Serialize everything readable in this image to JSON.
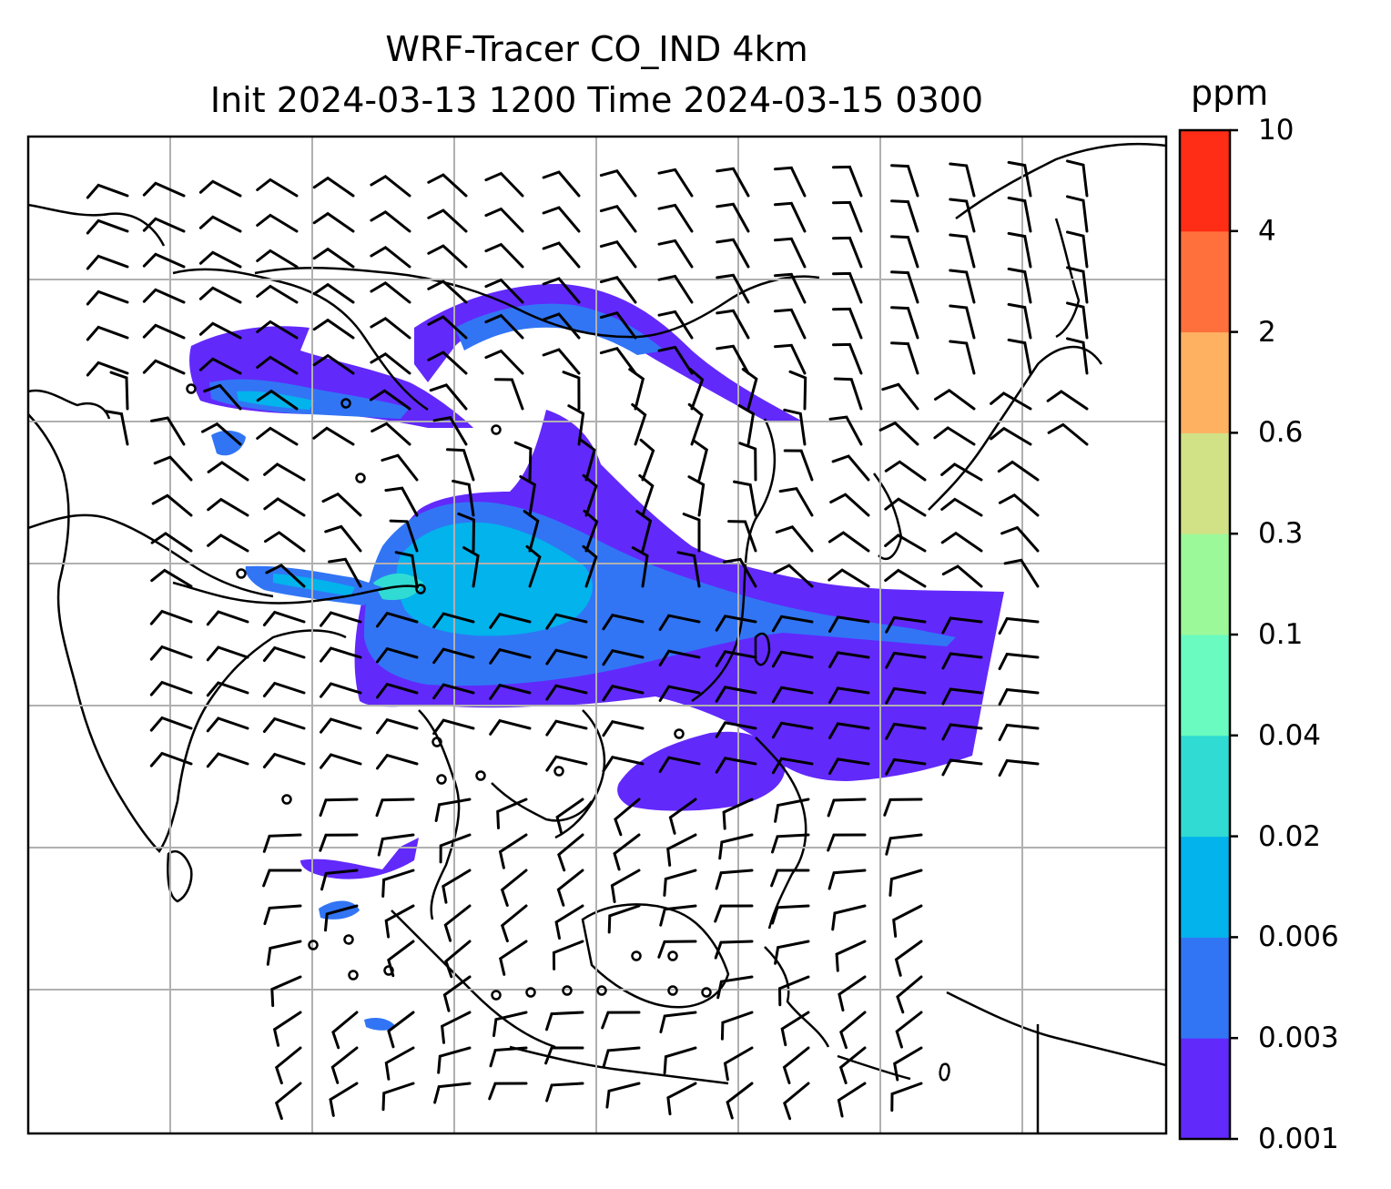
{
  "title": {
    "line1": "WRF-Tracer CO_IND 4km",
    "line2": "Init 2024-03-13 1200 Time 2024-03-15 0300"
  },
  "colorbar": {
    "units": "ppm",
    "ticks": [
      "0.001",
      "0.003",
      "0.006",
      "0.02",
      "0.04",
      "0.1",
      "0.3",
      "0.6",
      "2",
      "4",
      "10"
    ],
    "colors": [
      "#6229fb",
      "#3175f5",
      "#02b3ec",
      "#30dbd3",
      "#69fbbf",
      "#9cf99a",
      "#d1e185",
      "#feb261",
      "#ff703c",
      "#ff2c16"
    ]
  },
  "legend_note": ""
}
